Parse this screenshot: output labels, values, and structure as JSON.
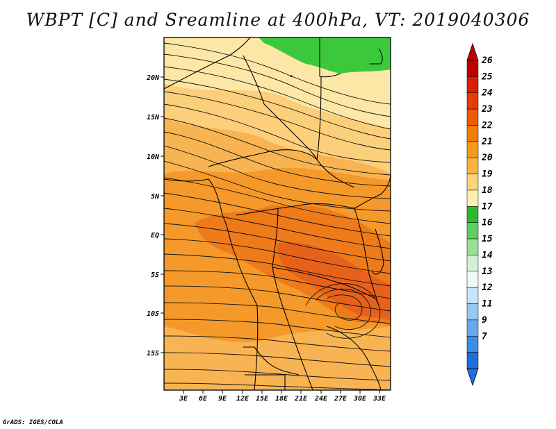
{
  "title": "WBPT [C] and Sreamline at 400hPa, VT: 2019040306",
  "footer": "GrADS: IGES/COLA",
  "lon_labels": [
    "3E",
    "6E",
    "9E",
    "12E",
    "15E",
    "18E",
    "21E",
    "24E",
    "27E",
    "30E",
    "33E"
  ],
  "lat_labels": [
    "20N",
    "15N",
    "10N",
    "5N",
    "EQ",
    "5S",
    "10S",
    "15S"
  ],
  "colorbar": {
    "labels": [
      "26",
      "25",
      "24",
      "23",
      "22",
      "21",
      "20",
      "19",
      "18",
      "17",
      "16",
      "15",
      "14",
      "13",
      "12",
      "11",
      "9",
      "7"
    ],
    "colors": [
      "#c00000",
      "#d82000",
      "#e63c00",
      "#f05a00",
      "#f57c00",
      "#f89a18",
      "#fab43c",
      "#fcd478",
      "#fdf0b0",
      "#2eb82e",
      "#5ecf5e",
      "#96e096",
      "#d4f0d4",
      "#f0fafa",
      "#c8e4fa",
      "#96c8f5",
      "#64a8f0",
      "#3c8ce8",
      "#1e6ee0"
    ]
  },
  "map": {
    "colors": {
      "cool": "#fde7a6",
      "warm": "#f8b452",
      "warmer": "#f59a2a",
      "hot": "#ee7a1a",
      "hotter": "#e8611a",
      "green": "#3cc83c"
    }
  }
}
